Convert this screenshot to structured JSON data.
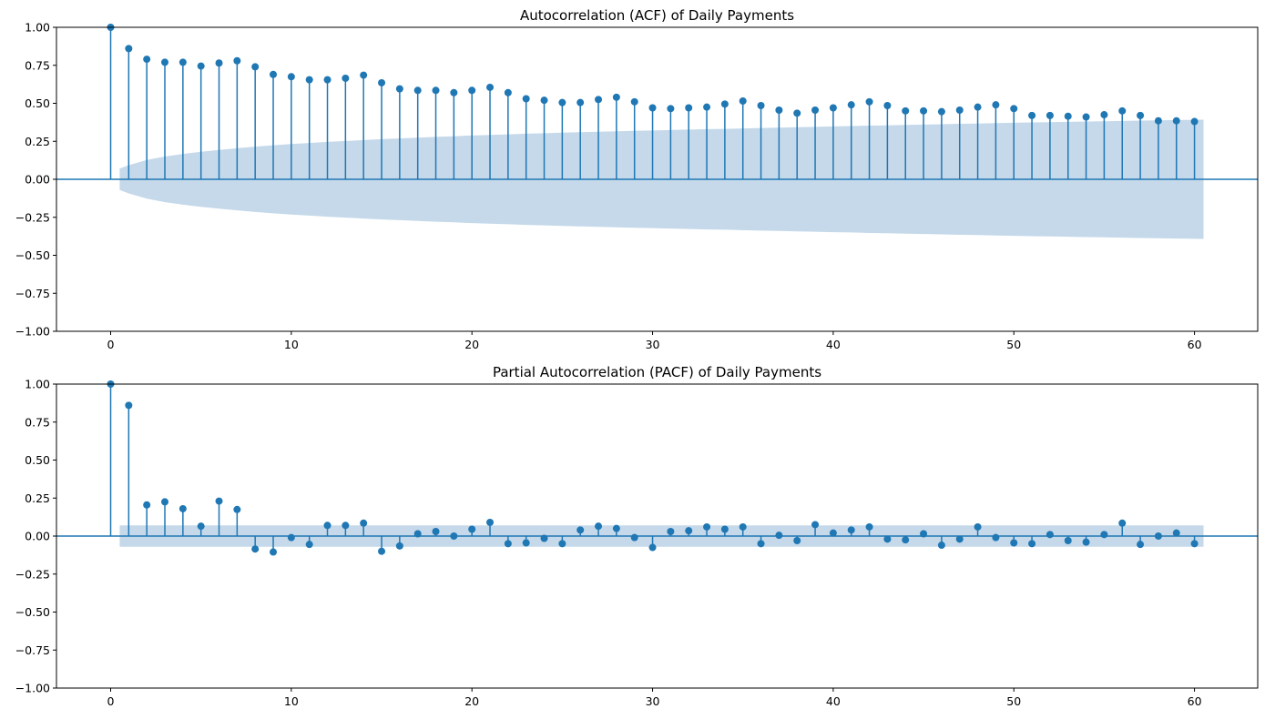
{
  "chart_data": [
    {
      "type": "stem",
      "title": "Autocorrelation (ACF) of Daily Payments",
      "xlabel": "",
      "ylabel": "",
      "xlim": [
        -3,
        63.5
      ],
      "ylim": [
        -1.0,
        1.0
      ],
      "x_ticks": [
        "0",
        "10",
        "20",
        "30",
        "40",
        "50",
        "60"
      ],
      "y_ticks": [
        "1.00",
        "0.75",
        "0.50",
        "0.25",
        "0.00",
        "−0.25",
        "−0.50",
        "−0.75",
        "−1.00"
      ],
      "lags": [
        0,
        1,
        2,
        3,
        4,
        5,
        6,
        7,
        8,
        9,
        10,
        11,
        12,
        13,
        14,
        15,
        16,
        17,
        18,
        19,
        20,
        21,
        22,
        23,
        24,
        25,
        26,
        27,
        28,
        29,
        30,
        31,
        32,
        33,
        34,
        35,
        36,
        37,
        38,
        39,
        40,
        41,
        42,
        43,
        44,
        45,
        46,
        47,
        48,
        49,
        50,
        51,
        52,
        53,
        54,
        55,
        56,
        57,
        58,
        59,
        60
      ],
      "values": [
        1.0,
        0.86,
        0.79,
        0.77,
        0.77,
        0.745,
        0.765,
        0.78,
        0.74,
        0.69,
        0.675,
        0.655,
        0.655,
        0.665,
        0.685,
        0.635,
        0.595,
        0.585,
        0.585,
        0.57,
        0.585,
        0.605,
        0.57,
        0.53,
        0.52,
        0.505,
        0.505,
        0.525,
        0.54,
        0.51,
        0.47,
        0.465,
        0.47,
        0.475,
        0.495,
        0.515,
        0.485,
        0.455,
        0.435,
        0.455,
        0.47,
        0.49,
        0.51,
        0.485,
        0.45,
        0.45,
        0.445,
        0.455,
        0.475,
        0.49,
        0.465,
        0.42,
        0.42,
        0.415,
        0.41,
        0.425,
        0.45,
        0.42,
        0.385,
        0.385,
        0.38
      ],
      "confint_upper": [
        0.07,
        0.093,
        0.127,
        0.15,
        0.167,
        0.181,
        0.193,
        0.204,
        0.215,
        0.224,
        0.232,
        0.239,
        0.246,
        0.252,
        0.258,
        0.264,
        0.269,
        0.274,
        0.279,
        0.283,
        0.288,
        0.292,
        0.296,
        0.3,
        0.303,
        0.307,
        0.31,
        0.313,
        0.316,
        0.319,
        0.321,
        0.324,
        0.327,
        0.33,
        0.332,
        0.335,
        0.338,
        0.34,
        0.343,
        0.345,
        0.348,
        0.35,
        0.353,
        0.355,
        0.358,
        0.36,
        0.362,
        0.365,
        0.367,
        0.37,
        0.372,
        0.374,
        0.376,
        0.378,
        0.38,
        0.382,
        0.384,
        0.386,
        0.388,
        0.39,
        0.392
      ]
    },
    {
      "type": "stem",
      "title": "Partial Autocorrelation (PACF) of Daily Payments",
      "xlabel": "",
      "ylabel": "",
      "xlim": [
        -3,
        63.5
      ],
      "ylim": [
        -1.0,
        1.0
      ],
      "x_ticks": [
        "0",
        "10",
        "20",
        "30",
        "40",
        "50",
        "60"
      ],
      "y_ticks": [
        "1.00",
        "0.75",
        "0.50",
        "0.25",
        "0.00",
        "−0.25",
        "−0.50",
        "−0.75",
        "−1.00"
      ],
      "lags": [
        0,
        1,
        2,
        3,
        4,
        5,
        6,
        7,
        8,
        9,
        10,
        11,
        12,
        13,
        14,
        15,
        16,
        17,
        18,
        19,
        20,
        21,
        22,
        23,
        24,
        25,
        26,
        27,
        28,
        29,
        30,
        31,
        32,
        33,
        34,
        35,
        36,
        37,
        38,
        39,
        40,
        41,
        42,
        43,
        44,
        45,
        46,
        47,
        48,
        49,
        50,
        51,
        52,
        53,
        54,
        55,
        56,
        57,
        58,
        59,
        60
      ],
      "values": [
        1.0,
        0.86,
        0.205,
        0.225,
        0.18,
        0.065,
        0.23,
        0.175,
        -0.085,
        -0.105,
        -0.01,
        -0.055,
        0.07,
        0.07,
        0.085,
        -0.1,
        -0.065,
        0.015,
        0.03,
        0.0,
        0.045,
        0.09,
        -0.05,
        -0.045,
        -0.015,
        -0.05,
        0.04,
        0.065,
        0.05,
        -0.01,
        -0.075,
        0.03,
        0.035,
        0.06,
        0.045,
        0.06,
        -0.05,
        0.005,
        -0.03,
        0.075,
        0.02,
        0.04,
        0.06,
        -0.02,
        -0.025,
        0.015,
        -0.06,
        -0.02,
        0.06,
        -0.01,
        -0.045,
        -0.05,
        0.01,
        -0.03,
        -0.04,
        0.01,
        0.085,
        -0.055,
        0.0,
        0.02,
        -0.05
      ],
      "confint_upper": 0.07
    }
  ],
  "colors": {
    "stem": "#1f77b4",
    "band": "#c5d9ea",
    "zero_line": "#1f77b4"
  }
}
